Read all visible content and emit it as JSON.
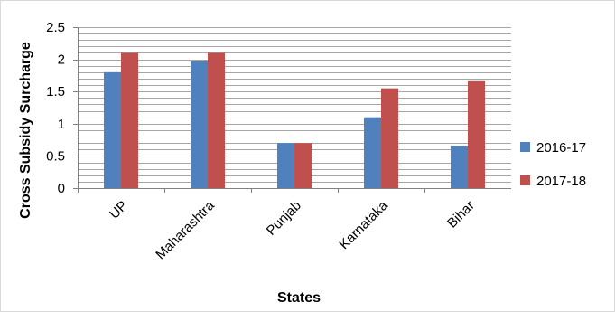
{
  "chart_data": {
    "type": "bar",
    "categories": [
      "UP",
      "Maharashtra",
      "Punjab",
      "Karnataka",
      "Bihar"
    ],
    "series": [
      {
        "name": "2016-17",
        "color": "#4f81bd",
        "values": [
          1.8,
          1.97,
          0.7,
          1.1,
          0.66
        ]
      },
      {
        "name": "2017-18",
        "color": "#c0504d",
        "values": [
          2.1,
          2.1,
          0.7,
          1.55,
          1.66
        ]
      }
    ],
    "xlabel": "States",
    "ylabel": "Cross Subsidy Surcharge",
    "ylim": [
      0,
      2.5
    ],
    "yticks": [
      "0",
      "0.5",
      "1",
      "1.5",
      "2",
      "2.5"
    ],
    "ytick_values": [
      0,
      0.5,
      1,
      1.5,
      2,
      2.5
    ],
    "minor_grid_step": 0.1,
    "grid": true,
    "legend_position": "right"
  }
}
